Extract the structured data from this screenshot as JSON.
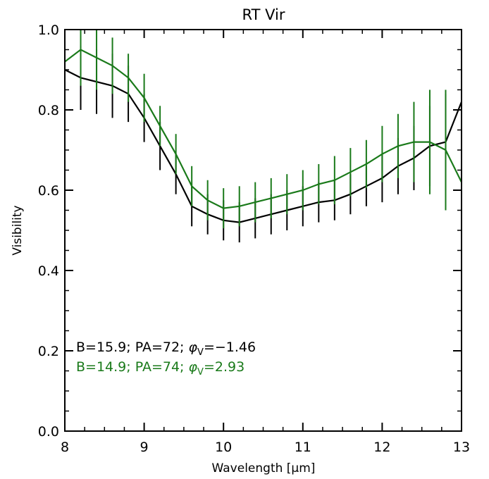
{
  "chart_data": {
    "type": "line",
    "title": "RT Vir",
    "xlabel": "Wavelength [μm]",
    "ylabel": "Visibility",
    "xlim": [
      8,
      13
    ],
    "ylim": [
      0.0,
      1.0
    ],
    "xticks": [
      8,
      9,
      10,
      11,
      12,
      13
    ],
    "xtick_labels": [
      "8",
      "9",
      "10",
      "11",
      "12",
      "13"
    ],
    "yticks": [
      0.0,
      0.2,
      0.4,
      0.6,
      0.8,
      1.0
    ],
    "ytick_labels": [
      "0.0",
      "0.2",
      "0.4",
      "0.6",
      "0.8",
      "1.0"
    ],
    "grid": false,
    "annotations": [
      {
        "prefix": "B=15.9; PA=72; ",
        "phi": "φ",
        "sub": "V",
        "suffix": "=−1.46",
        "color": "#000000"
      },
      {
        "prefix": "B=14.9; PA=74; ",
        "phi": "φ",
        "sub": "V",
        "suffix": "=2.93",
        "color": "#1a7a1a"
      }
    ],
    "series": [
      {
        "color": "#000000",
        "x": [
          8.0,
          8.2,
          8.4,
          8.6,
          8.8,
          9.0,
          9.2,
          9.4,
          9.6,
          9.8,
          10.0,
          10.2,
          10.4,
          10.6,
          10.8,
          11.0,
          11.2,
          11.4,
          11.6,
          11.8,
          12.0,
          12.2,
          12.4,
          12.6,
          12.8,
          13.0
        ],
        "y": [
          0.9,
          0.88,
          0.87,
          0.86,
          0.84,
          0.78,
          0.71,
          0.64,
          0.56,
          0.54,
          0.525,
          0.52,
          0.53,
          0.54,
          0.55,
          0.56,
          0.57,
          0.575,
          0.59,
          0.61,
          0.63,
          0.66,
          0.68,
          0.71,
          0.72,
          0.82
        ],
        "err": [
          0.08,
          0.08,
          0.08,
          0.08,
          0.07,
          0.06,
          0.06,
          0.05,
          0.05,
          0.05,
          0.05,
          0.05,
          0.05,
          0.05,
          0.05,
          0.05,
          0.05,
          0.05,
          0.05,
          0.05,
          0.06,
          0.07,
          0.08,
          0.1,
          0.12,
          0.12
        ]
      },
      {
        "color": "#1a7a1a",
        "x": [
          8.0,
          8.2,
          8.4,
          8.6,
          8.8,
          9.0,
          9.2,
          9.4,
          9.6,
          9.8,
          10.0,
          10.2,
          10.4,
          10.6,
          10.8,
          11.0,
          11.2,
          11.4,
          11.6,
          11.8,
          12.0,
          12.2,
          12.4,
          12.6,
          12.8,
          13.0
        ],
        "y": [
          0.92,
          0.95,
          0.93,
          0.91,
          0.88,
          0.83,
          0.76,
          0.69,
          0.61,
          0.575,
          0.555,
          0.56,
          0.57,
          0.58,
          0.59,
          0.6,
          0.615,
          0.625,
          0.645,
          0.665,
          0.69,
          0.71,
          0.72,
          0.72,
          0.7,
          0.62
        ],
        "err": [
          0.08,
          0.09,
          0.08,
          0.07,
          0.06,
          0.06,
          0.05,
          0.05,
          0.05,
          0.05,
          0.05,
          0.05,
          0.05,
          0.05,
          0.05,
          0.05,
          0.05,
          0.06,
          0.06,
          0.06,
          0.07,
          0.08,
          0.1,
          0.13,
          0.15,
          0.15
        ]
      }
    ]
  }
}
